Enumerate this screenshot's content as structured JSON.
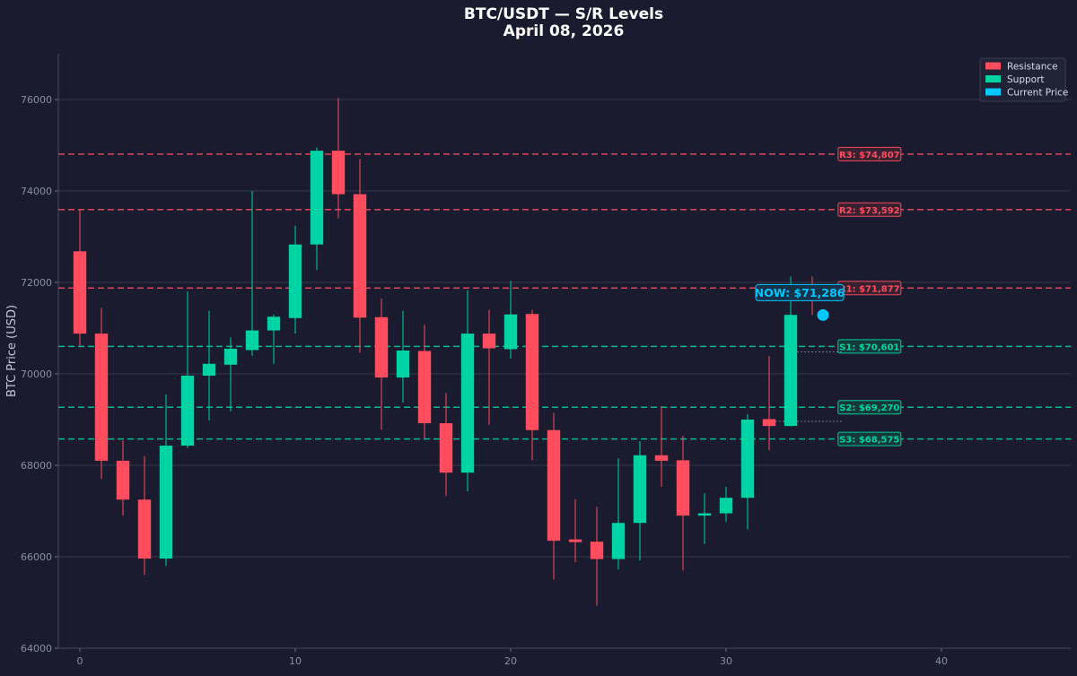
{
  "title": "BTC/USDT — S/R Levels",
  "subtitle": "April 08, 2026",
  "chart_data": {
    "type": "candlestick",
    "xlim": [
      -1,
      46
    ],
    "ylim": [
      64000,
      77000
    ],
    "x_ticks": [
      0,
      10,
      20,
      30,
      40
    ],
    "y_ticks": [
      64000,
      66000,
      68000,
      70000,
      72000,
      74000,
      76000
    ],
    "ylabel": "BTC Price (USD)",
    "grid": true,
    "legend_position": "top-right",
    "legend": [
      {
        "label": "Resistance",
        "color": "#ff4c5e"
      },
      {
        "label": "Support",
        "color": "#00d4a4"
      },
      {
        "label": "Current Price",
        "color": "#00c8ff"
      }
    ],
    "colors": {
      "up": "#00d4a4",
      "down": "#ff4c5e",
      "current": "#00c8ff",
      "background": "#1a1b2e"
    },
    "candles": [
      {
        "x": 0,
        "open": 72680,
        "high": 73600,
        "low": 70620,
        "close": 70880
      },
      {
        "x": 1,
        "open": 70880,
        "high": 71440,
        "low": 67700,
        "close": 68100
      },
      {
        "x": 2,
        "open": 68100,
        "high": 68550,
        "low": 66900,
        "close": 67250
      },
      {
        "x": 3,
        "open": 67250,
        "high": 68200,
        "low": 65600,
        "close": 65960
      },
      {
        "x": 4,
        "open": 65960,
        "high": 69550,
        "low": 65800,
        "close": 68430
      },
      {
        "x": 5,
        "open": 68430,
        "high": 71800,
        "low": 68380,
        "close": 69960
      },
      {
        "x": 6,
        "open": 69960,
        "high": 71380,
        "low": 68980,
        "close": 70220
      },
      {
        "x": 7,
        "open": 70200,
        "high": 70800,
        "low": 69180,
        "close": 70550
      },
      {
        "x": 8,
        "open": 70520,
        "high": 74000,
        "low": 70400,
        "close": 70950
      },
      {
        "x": 9,
        "open": 70950,
        "high": 71300,
        "low": 70220,
        "close": 71250
      },
      {
        "x": 10,
        "open": 71220,
        "high": 73240,
        "low": 70880,
        "close": 72830
      },
      {
        "x": 11,
        "open": 72830,
        "high": 74950,
        "low": 72270,
        "close": 74880
      },
      {
        "x": 12,
        "open": 74880,
        "high": 76030,
        "low": 73400,
        "close": 73930
      },
      {
        "x": 13,
        "open": 73930,
        "high": 74700,
        "low": 70460,
        "close": 71230
      },
      {
        "x": 14,
        "open": 71240,
        "high": 71650,
        "low": 68780,
        "close": 69920
      },
      {
        "x": 15,
        "open": 69920,
        "high": 71380,
        "low": 69370,
        "close": 70510
      },
      {
        "x": 16,
        "open": 70500,
        "high": 71070,
        "low": 68580,
        "close": 68920
      },
      {
        "x": 17,
        "open": 68920,
        "high": 69580,
        "low": 67330,
        "close": 67840
      },
      {
        "x": 18,
        "open": 67840,
        "high": 71830,
        "low": 67430,
        "close": 70880
      },
      {
        "x": 19,
        "open": 70880,
        "high": 71400,
        "low": 68890,
        "close": 70560
      },
      {
        "x": 20,
        "open": 70540,
        "high": 72030,
        "low": 70330,
        "close": 71300
      },
      {
        "x": 21,
        "open": 71310,
        "high": 71400,
        "low": 68110,
        "close": 68770
      },
      {
        "x": 22,
        "open": 68770,
        "high": 69150,
        "low": 65500,
        "close": 66350
      },
      {
        "x": 23,
        "open": 66380,
        "high": 67260,
        "low": 65880,
        "close": 66320
      },
      {
        "x": 24,
        "open": 66330,
        "high": 67090,
        "low": 64930,
        "close": 65950
      },
      {
        "x": 25,
        "open": 65950,
        "high": 68150,
        "low": 65720,
        "close": 66740
      },
      {
        "x": 26,
        "open": 66740,
        "high": 68530,
        "low": 65920,
        "close": 68220
      },
      {
        "x": 27,
        "open": 68220,
        "high": 69290,
        "low": 67530,
        "close": 68100
      },
      {
        "x": 28,
        "open": 68110,
        "high": 68650,
        "low": 65700,
        "close": 66900
      },
      {
        "x": 29,
        "open": 66900,
        "high": 67390,
        "low": 66280,
        "close": 66950
      },
      {
        "x": 30,
        "open": 66950,
        "high": 67530,
        "low": 66760,
        "close": 67290
      },
      {
        "x": 31,
        "open": 67290,
        "high": 69120,
        "low": 66600,
        "close": 69000
      },
      {
        "x": 32,
        "open": 69010,
        "high": 70390,
        "low": 68330,
        "close": 68860
      },
      {
        "x": 33,
        "open": 68860,
        "high": 72130,
        "low": 68850,
        "close": 71290
      },
      {
        "x": 34,
        "open": 71290,
        "high": 72130,
        "low": 71290,
        "close": 71290
      }
    ],
    "levels": [
      {
        "id": "R3",
        "type": "resistance",
        "value": 74807,
        "label": "R3: $74,807"
      },
      {
        "id": "R2",
        "type": "resistance",
        "value": 73592,
        "label": "R2: $73,592"
      },
      {
        "id": "R1",
        "type": "resistance",
        "value": 71877,
        "label": "R1: $71,877"
      },
      {
        "id": "S1",
        "type": "support",
        "value": 70601,
        "label": "S1: $70,601"
      },
      {
        "id": "S2",
        "type": "support",
        "value": 69270,
        "label": "S2: $69,270"
      },
      {
        "id": "S3",
        "type": "support",
        "value": 68575,
        "label": "S3: $68,575"
      }
    ],
    "dotted_markers": [
      {
        "y": 70480,
        "x_start": 33.3,
        "x_end": 35.4
      },
      {
        "y": 68960,
        "x_start": 32.3,
        "x_end": 35.4
      }
    ],
    "current_price": {
      "x": 34.5,
      "value": 71286,
      "label": "NOW: $71,286"
    }
  }
}
